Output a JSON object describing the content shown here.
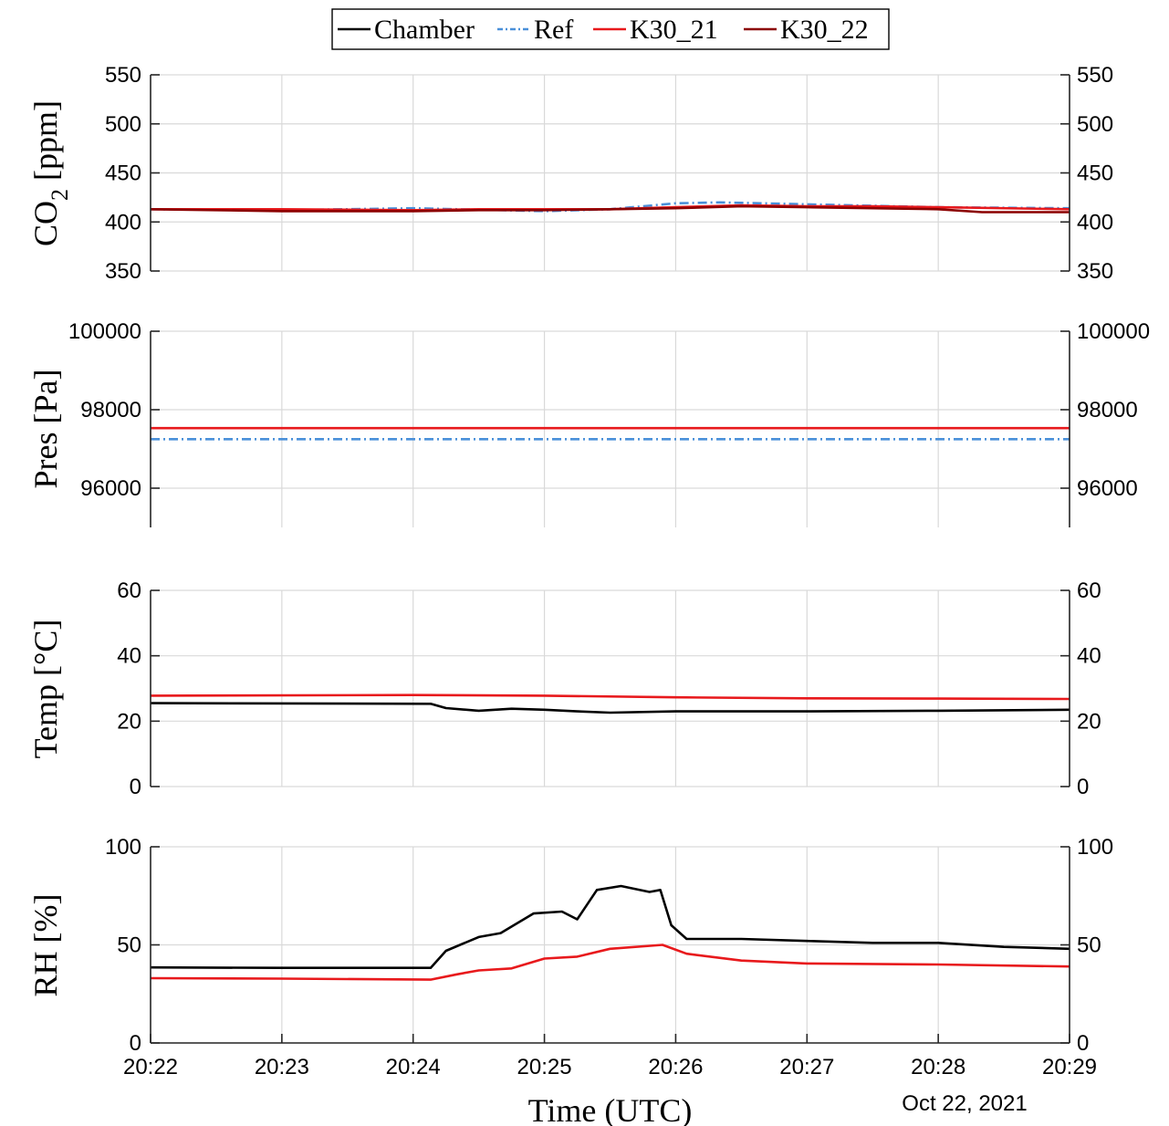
{
  "legend": {
    "items": [
      {
        "label": "Chamber",
        "color": "#000000",
        "dash": "solid"
      },
      {
        "label": "Ref",
        "color": "#4a90d9",
        "dash": "dashdot"
      },
      {
        "label": "K30_21",
        "color": "#e8191c",
        "dash": "solid"
      },
      {
        "label": "K30_22",
        "color": "#8b0000",
        "dash": "solid"
      }
    ]
  },
  "date_label": "Oct 22, 2021",
  "chart_data": [
    {
      "type": "line",
      "ylabel": "CO2 [ppm]",
      "ylabel_main": "CO",
      "ylabel_sub": "2",
      "ylabel_unit": "[ppm]",
      "ylim": [
        350,
        550
      ],
      "yticks": [
        350,
        400,
        450,
        500,
        550
      ],
      "xlim": [
        "20:22",
        "20:29"
      ],
      "xticks": [
        "20:22",
        "20:23",
        "20:24",
        "20:25",
        "20:26",
        "20:27",
        "20:28",
        "20:29"
      ],
      "grid": true,
      "series": [
        {
          "name": "Ref",
          "x": [
            "20:22:00",
            "20:23:00",
            "20:24:00",
            "20:25:00",
            "20:25:30",
            "20:26:00",
            "20:26:20",
            "20:26:40",
            "20:27:00",
            "20:28:00",
            "20:29:00"
          ],
          "values": [
            413,
            412,
            414,
            411,
            413,
            419,
            420,
            419,
            418,
            415,
            414
          ]
        },
        {
          "name": "K30_21",
          "x": [
            "20:22:00",
            "20:23:00",
            "20:24:00",
            "20:24:30",
            "20:25:00",
            "20:25:30",
            "20:26:00",
            "20:26:30",
            "20:27:00",
            "20:27:30",
            "20:28:00",
            "20:29:00"
          ],
          "values": [
            413,
            413,
            412,
            413,
            413,
            413,
            415,
            417,
            416,
            416,
            415,
            413
          ]
        },
        {
          "name": "K30_22",
          "x": [
            "20:22:00",
            "20:23:00",
            "20:24:00",
            "20:24:30",
            "20:25:00",
            "20:25:30",
            "20:26:00",
            "20:26:30",
            "20:27:00",
            "20:27:30",
            "20:28:00",
            "20:28:20",
            "20:29:00"
          ],
          "values": [
            413,
            411,
            411,
            412,
            412,
            413,
            414,
            416,
            415,
            414,
            413,
            410,
            410
          ]
        }
      ]
    },
    {
      "type": "line",
      "ylabel": "Pres [Pa]",
      "ylim": [
        95000,
        100000
      ],
      "yticks": [
        96000,
        98000,
        100000
      ],
      "xlim": [
        "20:22",
        "20:29"
      ],
      "xticks": [
        "20:22",
        "20:23",
        "20:24",
        "20:25",
        "20:26",
        "20:27",
        "20:28",
        "20:29"
      ],
      "grid": true,
      "series": [
        {
          "name": "K30_21",
          "x": [
            "20:22:00",
            "20:29:00"
          ],
          "values": [
            97530,
            97530
          ]
        },
        {
          "name": "Ref",
          "x": [
            "20:22:00",
            "20:29:00"
          ],
          "values": [
            97250,
            97250
          ]
        }
      ]
    },
    {
      "type": "line",
      "ylabel": "Temp [°C]",
      "ylim": [
        0,
        60
      ],
      "yticks": [
        0,
        20,
        40,
        60
      ],
      "xlim": [
        "20:22",
        "20:29"
      ],
      "xticks": [
        "20:22",
        "20:23",
        "20:24",
        "20:25",
        "20:26",
        "20:27",
        "20:28",
        "20:29"
      ],
      "grid": true,
      "series": [
        {
          "name": "K30_21",
          "x": [
            "20:22:00",
            "20:24:00",
            "20:25:00",
            "20:26:00",
            "20:27:00",
            "20:28:00",
            "20:29:00"
          ],
          "values": [
            27.8,
            28.0,
            27.8,
            27.3,
            27.0,
            26.9,
            26.8
          ]
        },
        {
          "name": "Chamber",
          "x": [
            "20:22:00",
            "20:24:08",
            "20:24:15",
            "20:24:30",
            "20:24:45",
            "20:25:00",
            "20:25:15",
            "20:25:30",
            "20:26:00",
            "20:27:00",
            "20:28:00",
            "20:29:00"
          ],
          "values": [
            25.5,
            25.3,
            24.0,
            23.2,
            23.8,
            23.5,
            23.0,
            22.6,
            23.0,
            23.0,
            23.2,
            23.5
          ]
        }
      ]
    },
    {
      "type": "line",
      "ylabel": "RH [%]",
      "ylim": [
        0,
        100
      ],
      "yticks": [
        0,
        50,
        100
      ],
      "xlim": [
        "20:22",
        "20:29"
      ],
      "xticks": [
        "20:22",
        "20:23",
        "20:24",
        "20:25",
        "20:26",
        "20:27",
        "20:28",
        "20:29"
      ],
      "grid": true,
      "series": [
        {
          "name": "Chamber",
          "x": [
            "20:22:00",
            "20:23:00",
            "20:24:08",
            "20:24:15",
            "20:24:30",
            "20:24:40",
            "20:24:55",
            "20:25:08",
            "20:25:15",
            "20:25:24",
            "20:25:35",
            "20:25:48",
            "20:25:53",
            "20:25:58",
            "20:26:05",
            "20:26:30",
            "20:27:00",
            "20:27:30",
            "20:28:00",
            "20:28:30",
            "20:29:00"
          ],
          "values": [
            38.5,
            38.3,
            38.3,
            47,
            54,
            56,
            66,
            67,
            63,
            78,
            80,
            77,
            78,
            60,
            53,
            53,
            52,
            51,
            51,
            49,
            48
          ]
        },
        {
          "name": "K30_21",
          "x": [
            "20:22:00",
            "20:23:00",
            "20:24:08",
            "20:24:20",
            "20:24:30",
            "20:24:45",
            "20:25:00",
            "20:25:15",
            "20:25:30",
            "20:25:54",
            "20:26:05",
            "20:26:30",
            "20:27:00",
            "20:28:00",
            "20:29:00"
          ],
          "values": [
            33,
            32.8,
            32.3,
            35,
            37,
            38,
            43,
            44,
            48,
            50,
            45.5,
            42,
            40.5,
            40,
            39
          ]
        }
      ]
    }
  ]
}
